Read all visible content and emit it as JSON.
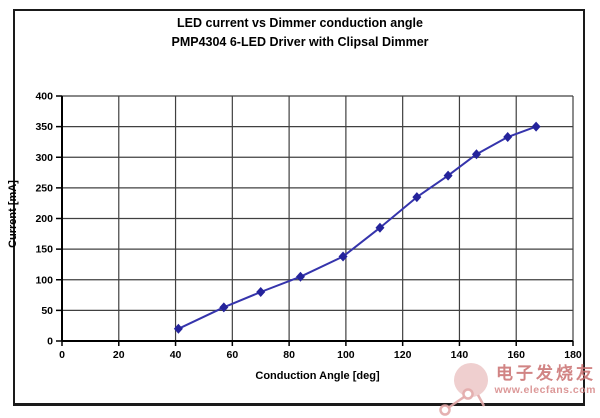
{
  "watermark": {
    "text": "电子发烧友",
    "url": "www.elecfans.com",
    "text_color": "#c96e6e",
    "icon_color": "#e2a8a8"
  },
  "chart_data": {
    "type": "line",
    "title": "LED current vs Dimmer conduction angle",
    "subtitle": "PMP4304 6-LED Driver with Clipsal Dimmer",
    "xlabel": "Conduction Angle [deg]",
    "ylabel": "Current [mA]",
    "xlim": [
      0,
      180
    ],
    "ylim": [
      0,
      400
    ],
    "xticks": [
      0,
      20,
      40,
      60,
      80,
      100,
      120,
      140,
      160,
      180
    ],
    "yticks": [
      0,
      50,
      100,
      150,
      200,
      250,
      300,
      350,
      400
    ],
    "grid": true,
    "legend_position": "none",
    "colors": {
      "grid": "#404040",
      "axis": "#000000"
    },
    "series": [
      {
        "name": "LED current",
        "marker": "diamond",
        "line_color": "#3534ac",
        "marker_color": "#24239b",
        "points": [
          [
            41,
            20
          ],
          [
            57,
            55
          ],
          [
            70,
            80
          ],
          [
            84,
            105
          ],
          [
            99,
            138
          ],
          [
            112,
            185
          ],
          [
            125,
            235
          ],
          [
            136,
            270
          ],
          [
            146,
            305
          ],
          [
            157,
            333
          ],
          [
            167,
            350
          ]
        ]
      }
    ]
  }
}
